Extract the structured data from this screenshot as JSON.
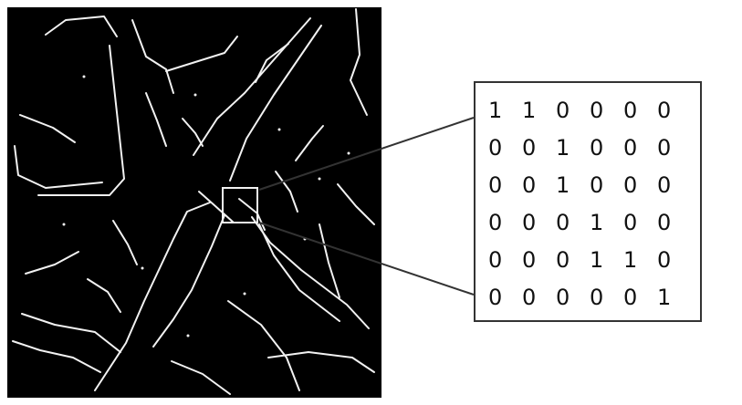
{
  "matrix": {
    "rows": [
      [
        "1",
        "1",
        "0",
        "0",
        "0",
        "0"
      ],
      [
        "0",
        "0",
        "1",
        "0",
        "0",
        "0"
      ],
      [
        "0",
        "0",
        "1",
        "0",
        "0",
        "0"
      ],
      [
        "0",
        "0",
        "0",
        "1",
        "0",
        "0"
      ],
      [
        "0",
        "0",
        "0",
        "1",
        "1",
        "0"
      ],
      [
        "0",
        "0",
        "0",
        "0",
        "0",
        "1"
      ]
    ]
  },
  "colors": {
    "background": "#000000",
    "edges": "#f2f2f2",
    "callout": "#333333"
  }
}
